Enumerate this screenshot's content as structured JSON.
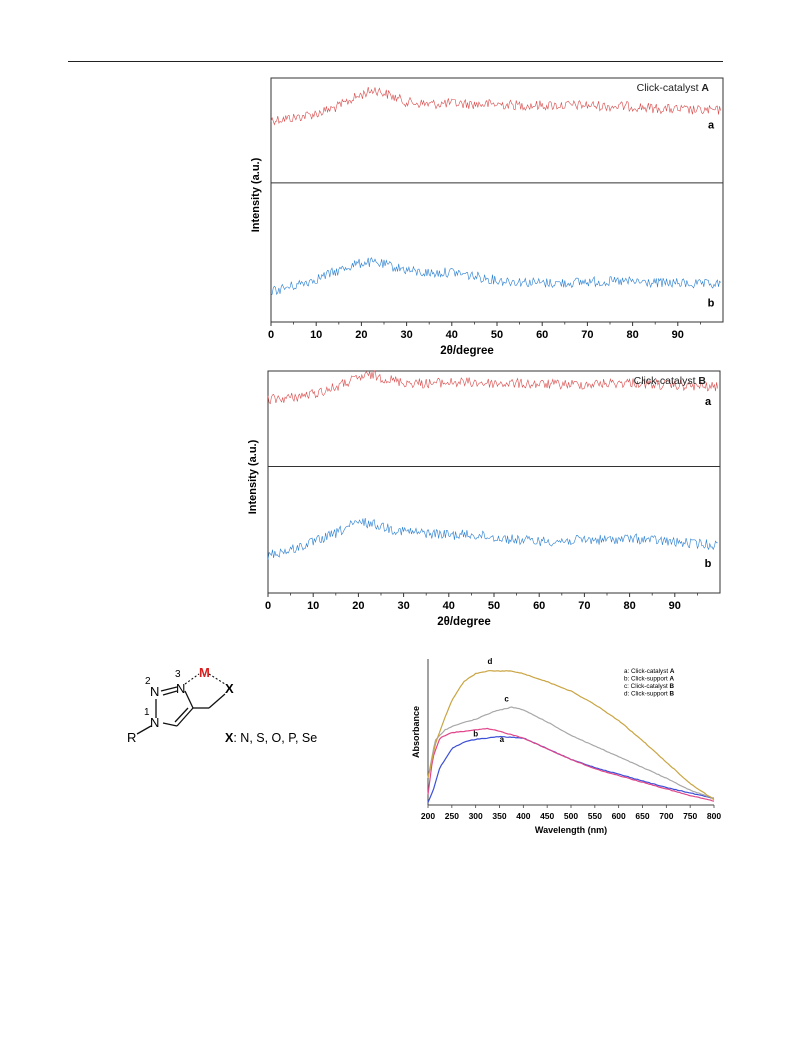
{
  "chart_data": [
    {
      "type": "line",
      "title": "Click-catalyst A",
      "xlabel": "2θ/degree",
      "ylabel": "Intensity (a.u.)",
      "xlim": [
        0,
        100
      ],
      "xticks": [
        0,
        10,
        20,
        30,
        40,
        50,
        60,
        70,
        80,
        90
      ],
      "series": [
        {
          "name": "a",
          "color": "#d94b4b",
          "x": [
            0,
            5,
            10,
            15,
            18,
            21,
            23,
            26,
            30,
            35,
            40,
            45,
            50,
            55,
            60,
            65,
            70,
            75,
            80,
            85,
            90,
            95,
            99
          ],
          "y": [
            0.6,
            0.62,
            0.66,
            0.73,
            0.8,
            0.86,
            0.89,
            0.84,
            0.77,
            0.75,
            0.76,
            0.75,
            0.75,
            0.74,
            0.74,
            0.74,
            0.74,
            0.73,
            0.73,
            0.71,
            0.7,
            0.69,
            0.69
          ]
        },
        {
          "name": "b",
          "color": "#2a7fd0",
          "x": [
            0,
            5,
            10,
            15,
            18,
            21,
            24,
            28,
            32,
            36,
            40,
            45,
            50,
            55,
            60,
            65,
            70,
            75,
            80,
            85,
            90,
            95,
            99
          ],
          "y": [
            0.22,
            0.26,
            0.31,
            0.37,
            0.41,
            0.43,
            0.42,
            0.39,
            0.36,
            0.35,
            0.36,
            0.33,
            0.3,
            0.29,
            0.28,
            0.28,
            0.29,
            0.29,
            0.29,
            0.28,
            0.28,
            0.27,
            0.27
          ]
        }
      ]
    },
    {
      "type": "line",
      "title": "Click-catalyst B",
      "xlabel": "2θ/degree",
      "ylabel": "Intensity (a.u.)",
      "xlim": [
        0,
        100
      ],
      "xticks": [
        0,
        10,
        20,
        30,
        40,
        50,
        60,
        70,
        80,
        90
      ],
      "series": [
        {
          "name": "a",
          "color": "#d94b4b",
          "x": [
            0,
            5,
            10,
            15,
            18,
            21,
            23,
            26,
            30,
            35,
            40,
            45,
            50,
            55,
            60,
            65,
            70,
            75,
            80,
            85,
            90,
            95,
            99
          ],
          "y": [
            0.7,
            0.72,
            0.76,
            0.83,
            0.89,
            0.94,
            0.96,
            0.92,
            0.88,
            0.87,
            0.88,
            0.88,
            0.87,
            0.87,
            0.86,
            0.86,
            0.86,
            0.87,
            0.88,
            0.86,
            0.85,
            0.84,
            0.83
          ]
        },
        {
          "name": "b",
          "color": "#2a7fd0",
          "x": [
            0,
            5,
            10,
            15,
            18,
            21,
            24,
            28,
            32,
            36,
            40,
            45,
            50,
            55,
            60,
            65,
            70,
            75,
            80,
            85,
            90,
            95,
            99
          ],
          "y": [
            0.3,
            0.34,
            0.4,
            0.47,
            0.53,
            0.56,
            0.54,
            0.5,
            0.48,
            0.47,
            0.46,
            0.46,
            0.44,
            0.42,
            0.41,
            0.41,
            0.42,
            0.42,
            0.43,
            0.42,
            0.4,
            0.39,
            0.38
          ]
        }
      ]
    },
    {
      "type": "line",
      "xlabel": "Wavelength (nm)",
      "ylabel": "Absorbance",
      "xlim": [
        200,
        800
      ],
      "xticks": [
        200,
        250,
        300,
        350,
        400,
        450,
        500,
        550,
        600,
        650,
        700,
        750,
        800
      ],
      "legend": {
        "placement": "top-right",
        "entries": [
          {
            "prefix": "a: Click-catalyst ",
            "bold": "A"
          },
          {
            "prefix": "b: Click-support ",
            "bold": "A"
          },
          {
            "prefix": "c: Click-catalyst ",
            "bold": "B"
          },
          {
            "prefix": "d: Click-support ",
            "bold": "B"
          }
        ]
      },
      "series": [
        {
          "name": "a",
          "color": "#3b4fd6",
          "x": [
            200,
            210,
            225,
            250,
            275,
            300,
            350,
            400,
            450,
            500,
            550,
            600,
            650,
            700,
            750,
            800
          ],
          "y": [
            0.02,
            0.1,
            0.28,
            0.42,
            0.47,
            0.49,
            0.51,
            0.5,
            0.42,
            0.34,
            0.28,
            0.23,
            0.18,
            0.13,
            0.09,
            0.05
          ]
        },
        {
          "name": "b",
          "color": "#e0478a",
          "x": [
            200,
            210,
            225,
            250,
            275,
            300,
            325,
            350,
            400,
            450,
            500,
            550,
            600,
            650,
            700,
            750,
            800
          ],
          "y": [
            0.08,
            0.35,
            0.5,
            0.54,
            0.55,
            0.56,
            0.57,
            0.55,
            0.5,
            0.42,
            0.34,
            0.27,
            0.22,
            0.17,
            0.12,
            0.07,
            0.03
          ]
        },
        {
          "name": "c",
          "color": "#a8a8a8",
          "x": [
            200,
            215,
            235,
            260,
            300,
            340,
            375,
            400,
            450,
            500,
            550,
            600,
            650,
            700,
            750,
            800
          ],
          "y": [
            0.2,
            0.48,
            0.56,
            0.6,
            0.64,
            0.7,
            0.73,
            0.71,
            0.62,
            0.52,
            0.44,
            0.36,
            0.28,
            0.2,
            0.11,
            0.05
          ]
        },
        {
          "name": "d",
          "color": "#c9a441",
          "x": [
            200,
            215,
            235,
            250,
            275,
            300,
            325,
            350,
            375,
            400,
            450,
            500,
            550,
            600,
            650,
            700,
            750,
            800
          ],
          "y": [
            0.2,
            0.45,
            0.65,
            0.78,
            0.92,
            0.98,
            1.0,
            1.0,
            1.0,
            0.98,
            0.92,
            0.85,
            0.75,
            0.63,
            0.48,
            0.32,
            0.16,
            0.04
          ]
        }
      ]
    }
  ],
  "structure": {
    "atom_n1": "N",
    "atom_n2": "N",
    "atom_n3": "N",
    "num_1": "1",
    "num_2": "2",
    "num_3": "3",
    "metal": "M",
    "r_group": "R",
    "x_atom": "X",
    "x_caption_bold": "X",
    "x_caption_rest": ": N, S, O, P, Se",
    "metal_color": "#d62020"
  }
}
